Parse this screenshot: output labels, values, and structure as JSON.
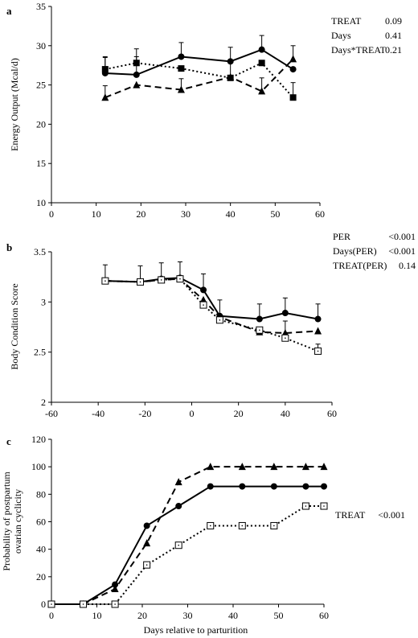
{
  "chart_data": [
    {
      "panel": "a",
      "type": "line",
      "xlabel": "",
      "ylabel": "Energy Output (Mcal/d)",
      "xlim": [
        0,
        60
      ],
      "ylim": [
        10,
        35
      ],
      "xticks": [
        0,
        10,
        20,
        30,
        40,
        50,
        60
      ],
      "yticks": [
        10,
        15,
        20,
        25,
        30,
        35
      ],
      "series": [
        {
          "style": "solid",
          "marker": "circle-filled",
          "x": [
            12,
            19,
            29,
            40,
            47,
            54
          ],
          "y": [
            26.5,
            26.3,
            28.6,
            28.0,
            29.5,
            27.0
          ],
          "err": [
            2.0,
            2.3,
            1.8,
            1.8,
            1.8,
            0
          ]
        },
        {
          "style": "dotted",
          "marker": "square-filled",
          "x": [
            12,
            19,
            29,
            40,
            47,
            54
          ],
          "y": [
            27.0,
            27.8,
            27.1,
            25.9,
            27.8,
            23.4
          ],
          "err": [
            1.6,
            1.8,
            0,
            0,
            0,
            1.9
          ]
        },
        {
          "style": "dashed",
          "marker": "triangle-filled",
          "x": [
            12,
            19,
            29,
            40,
            47,
            54
          ],
          "y": [
            23.4,
            25.0,
            24.4,
            26.0,
            24.2,
            28.3
          ],
          "err": [
            1.5,
            0,
            1.4,
            2.0,
            1.7,
            1.7
          ]
        }
      ],
      "stats": [
        {
          "label": "TREAT",
          "value": "0.09"
        },
        {
          "label": "Days",
          "value": "0.41"
        },
        {
          "label": "Days*TREAT",
          "value": "0.21"
        }
      ]
    },
    {
      "panel": "b",
      "type": "line",
      "xlabel": "",
      "ylabel": "Body Condition Score",
      "xlim": [
        -60,
        60
      ],
      "ylim": [
        2,
        3.5
      ],
      "xticks": [
        -60,
        -40,
        -20,
        0,
        20,
        40,
        60
      ],
      "yticks": [
        2,
        2.5,
        3,
        3.5
      ],
      "series": [
        {
          "style": "solid",
          "marker": "circle-filled",
          "x": [
            -37,
            -22,
            -13,
            -5,
            5,
            12,
            29,
            40,
            54
          ],
          "y": [
            3.21,
            3.2,
            3.23,
            3.24,
            3.12,
            2.86,
            2.83,
            2.89,
            2.83
          ],
          "err": [
            0.16,
            0.16,
            0.16,
            0.16,
            0.16,
            0.16,
            0.15,
            0.15,
            0.15
          ]
        },
        {
          "style": "dashed",
          "marker": "triangle-filled",
          "x": [
            -37,
            -22,
            -13,
            -5,
            5,
            12,
            29,
            40,
            54
          ],
          "y": [
            3.21,
            3.2,
            3.22,
            3.23,
            3.02,
            2.85,
            2.7,
            2.69,
            2.71
          ],
          "err": [
            0,
            0,
            0,
            0,
            0,
            0,
            0,
            0.12,
            0
          ]
        },
        {
          "style": "dotted",
          "marker": "square-open",
          "x": [
            -37,
            -22,
            -13,
            -5,
            5,
            12,
            29,
            40,
            54
          ],
          "y": [
            3.21,
            3.2,
            3.22,
            3.23,
            2.97,
            2.82,
            2.72,
            2.64,
            2.51
          ],
          "err": [
            0,
            0,
            0,
            0,
            0,
            0,
            0,
            0,
            0.07
          ]
        }
      ],
      "stats": [
        {
          "label": "PER",
          "value": "<0.001"
        },
        {
          "label": "Days(PER)",
          "value": "<0.001"
        },
        {
          "label": "TREAT(PER)",
          "value": "0.14"
        }
      ]
    },
    {
      "panel": "c",
      "type": "line",
      "xlabel": "Days relative to parturition",
      "ylabel": "Probability of postpartum ovarian cyclicity",
      "xlim": [
        0,
        60
      ],
      "ylim": [
        0,
        120
      ],
      "xticks": [
        0,
        10,
        20,
        30,
        40,
        50,
        60
      ],
      "yticks": [
        0,
        20,
        40,
        60,
        80,
        100,
        120
      ],
      "series": [
        {
          "style": "solid",
          "marker": "circle-filled",
          "x": [
            0,
            7,
            14,
            21,
            28,
            35,
            42,
            49,
            56,
            60
          ],
          "y": [
            0,
            0,
            14.3,
            57.1,
            71.4,
            85.7,
            85.7,
            85.7,
            85.7,
            85.7
          ],
          "err": []
        },
        {
          "style": "dashed",
          "marker": "triangle-filled",
          "x": [
            0,
            7,
            14,
            21,
            28,
            35,
            42,
            49,
            56,
            60
          ],
          "y": [
            0,
            0,
            11.1,
            44.4,
            88.9,
            100,
            100,
            100,
            100,
            100
          ],
          "err": []
        },
        {
          "style": "dotted",
          "marker": "square-open",
          "x": [
            0,
            7,
            14,
            21,
            28,
            35,
            42,
            49,
            56,
            60
          ],
          "y": [
            0,
            0,
            0,
            28.6,
            42.9,
            57.1,
            57.1,
            57.1,
            71.4,
            71.4
          ],
          "err": []
        }
      ],
      "stats": [
        {
          "label": "TREAT",
          "value": "<0.001"
        }
      ]
    }
  ]
}
